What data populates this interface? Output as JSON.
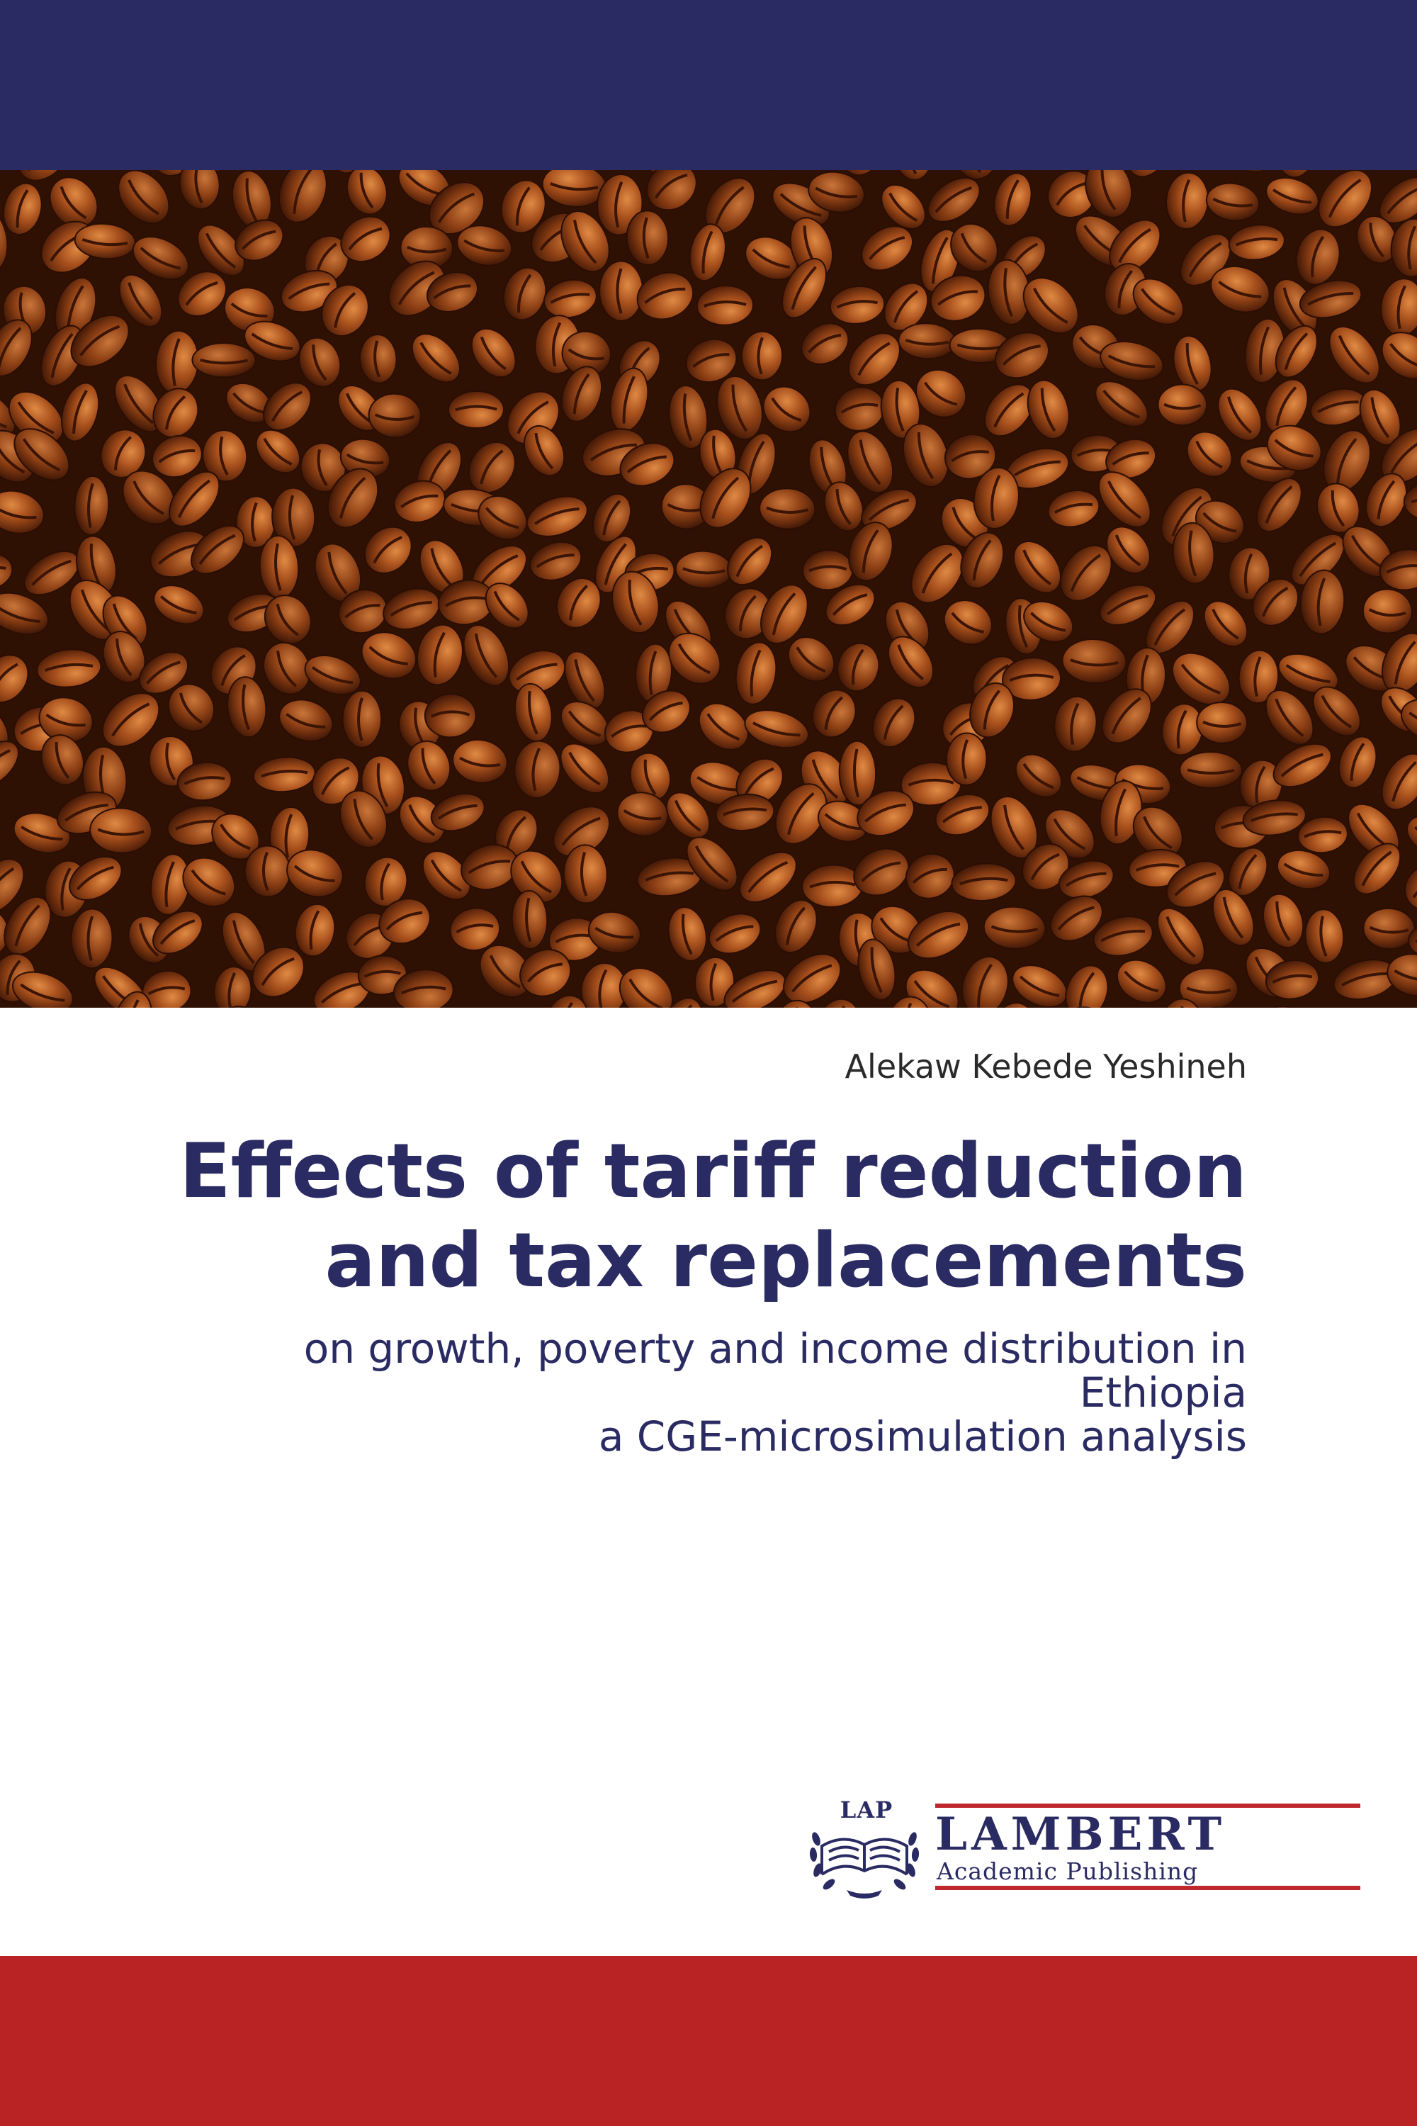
{
  "cover": {
    "author": "Alekaw Kebede Yeshineh",
    "title_lines": [
      "Effects of tariff reduction",
      "and tax replacements"
    ],
    "subtitle_lines": [
      "on growth, poverty and income distribution in",
      "Ethiopia",
      "a CGE-microsimulation analysis"
    ],
    "cover_image": "roasted coffee beans photo"
  },
  "publisher": {
    "emblem_text": "LAP",
    "brand": "LAMBERT",
    "imprint": "Academic Publishing"
  },
  "colors": {
    "top_band": "#2b2b63",
    "bottom_band": "#b92323",
    "title": "#2b2b63",
    "logo_rule": "#c0282d"
  }
}
